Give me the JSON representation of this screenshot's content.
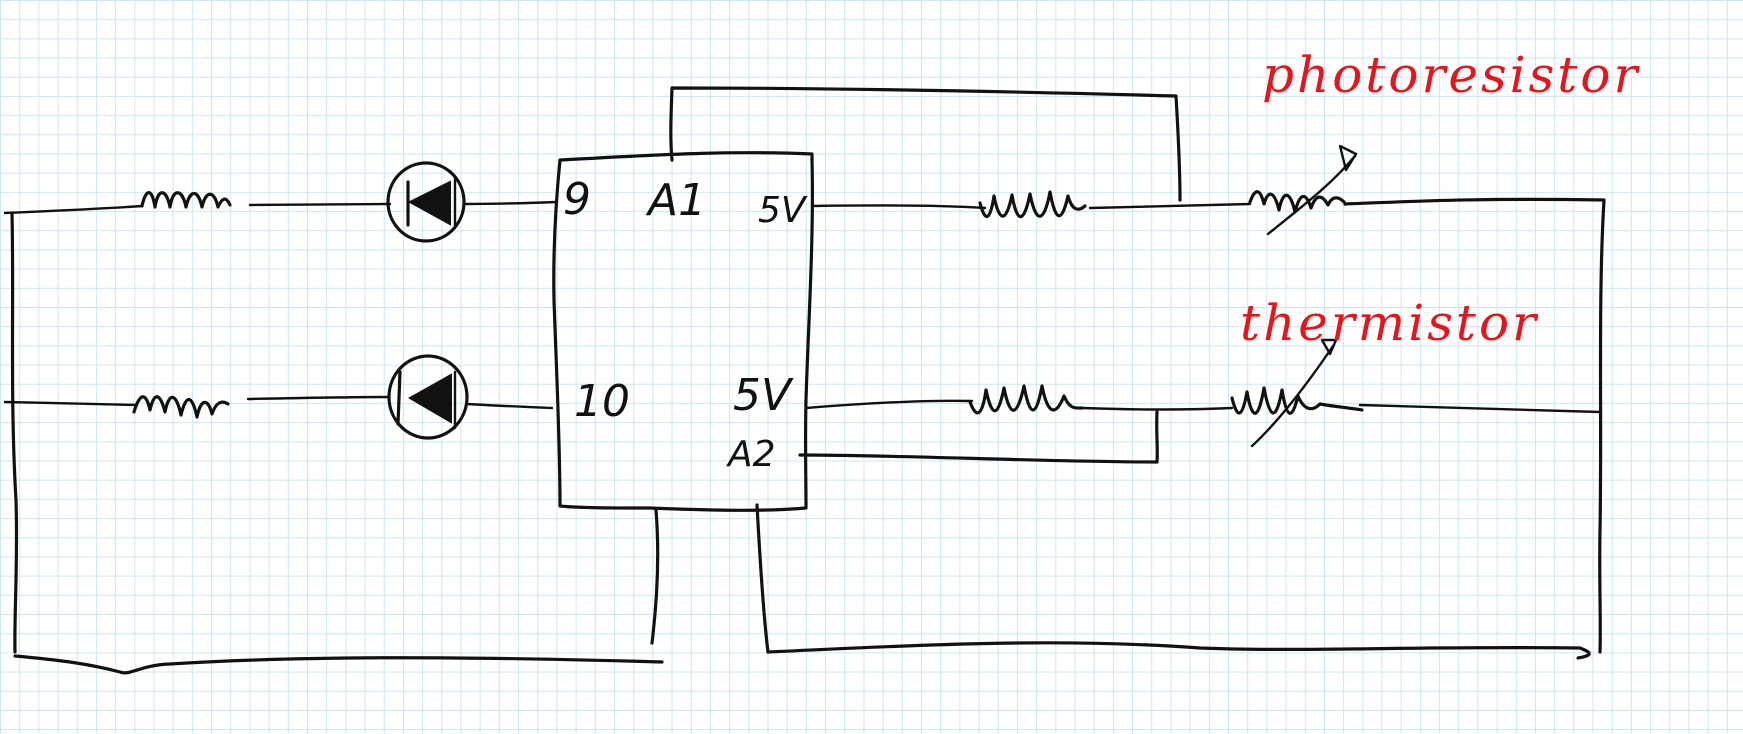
{
  "pins": {
    "pin9": "9",
    "pin10": "10",
    "a1": "A1",
    "a2": "A2",
    "v5_top": "5V",
    "v5_bottom": "5V"
  },
  "annotations": {
    "photoresistor": "photoresistor",
    "thermistor": "thermistor"
  },
  "colors": {
    "ink": "#111111",
    "annotation": "#e8141c",
    "grid": "#cfe6ef"
  }
}
